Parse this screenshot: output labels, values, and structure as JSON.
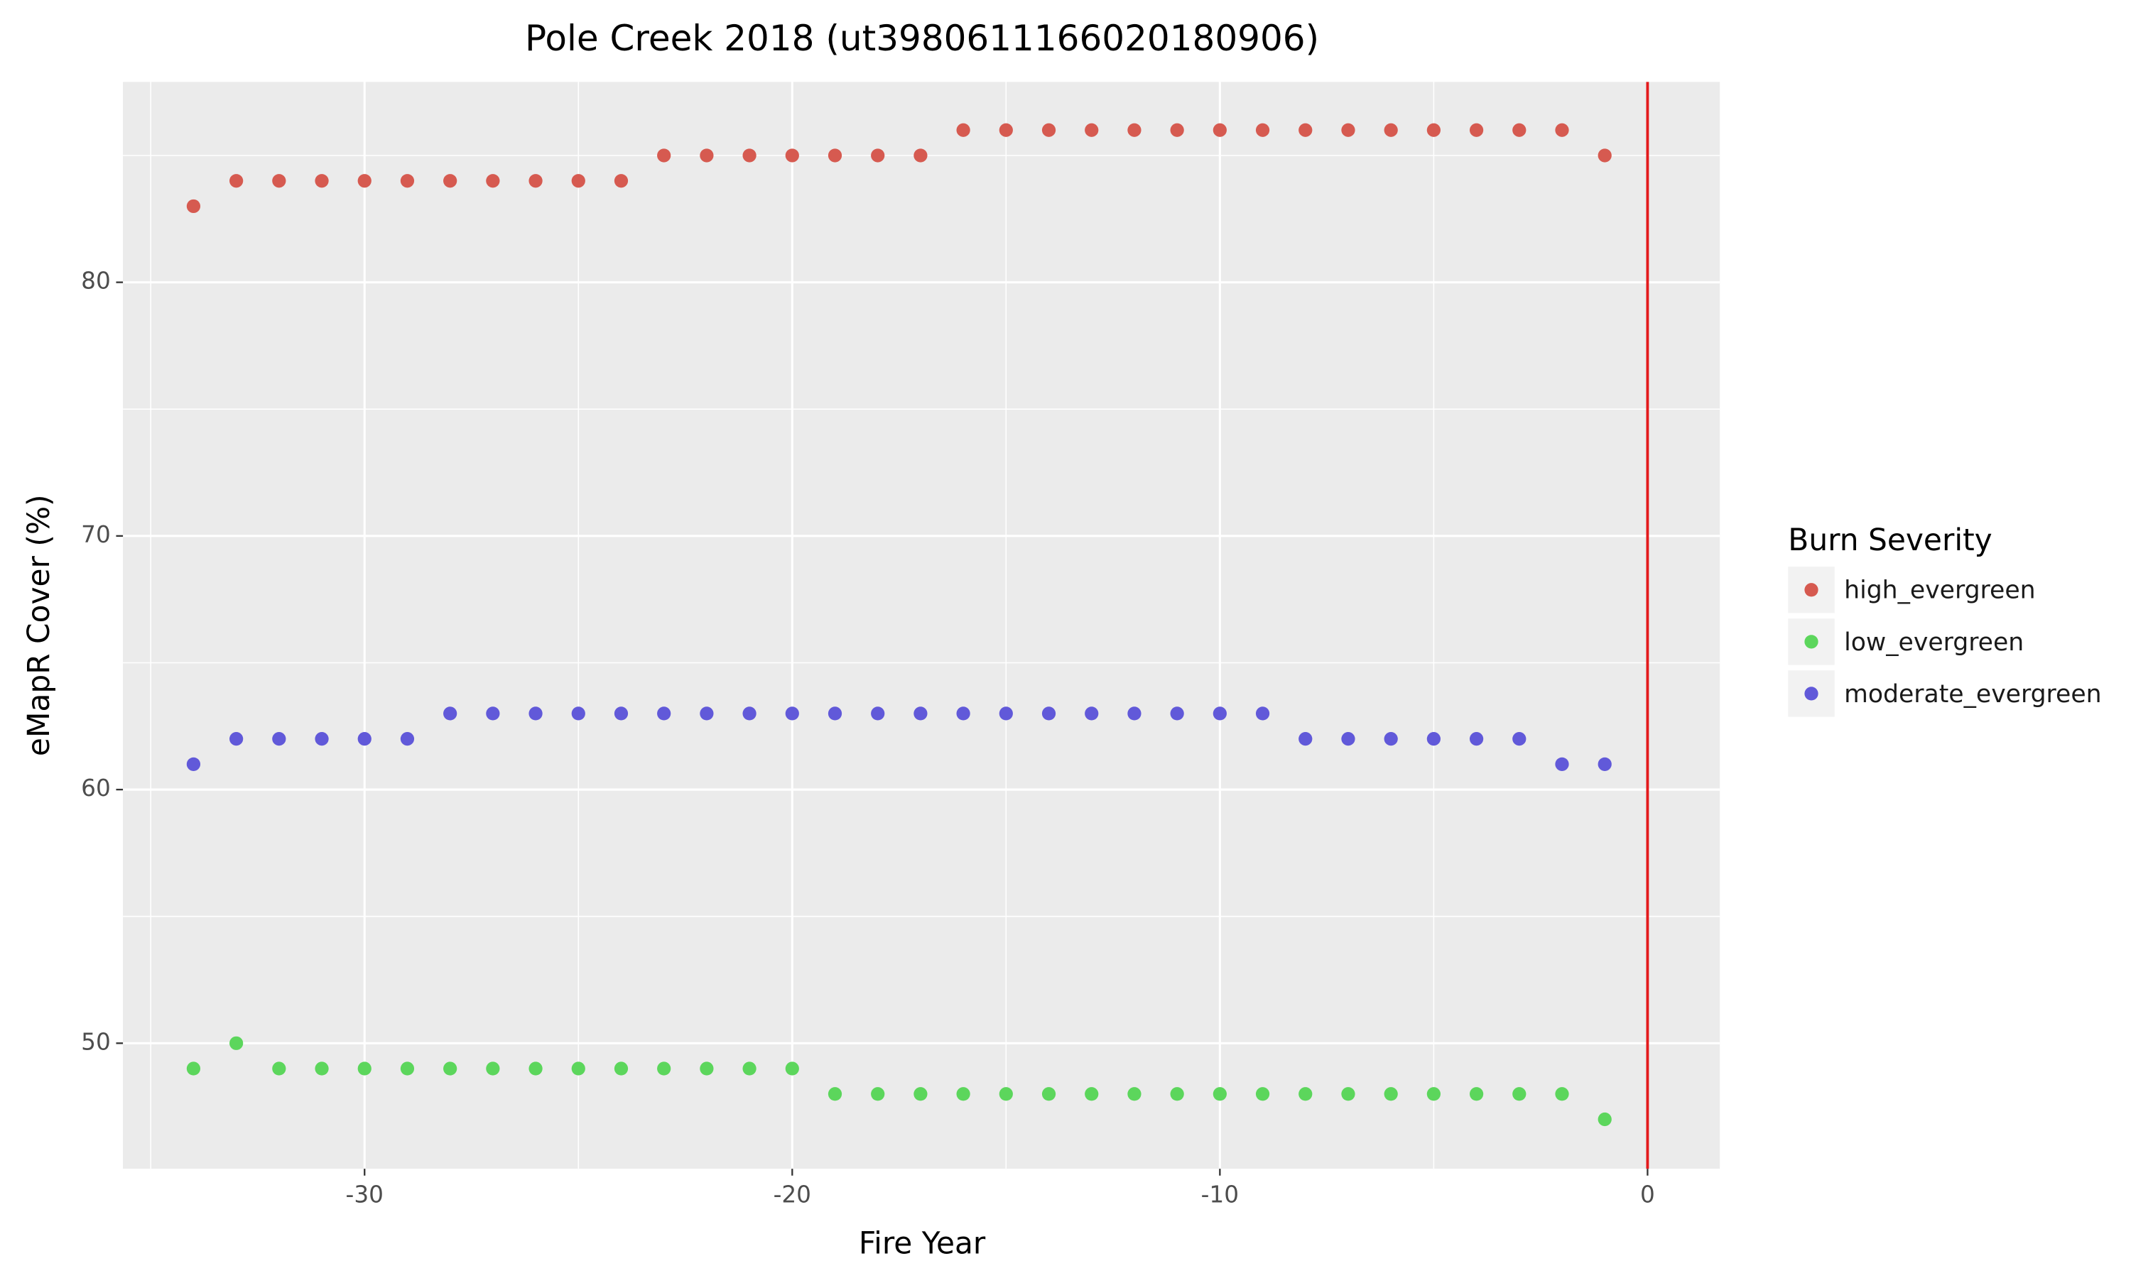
{
  "chart_data": {
    "type": "scatter",
    "title": "Pole Creek 2018 (ut39806111660201809​06)",
    "x_label": "Fire Year",
    "y_label": "eMapR Cover (%)",
    "legend_title": "Burn Severity",
    "x": [
      -34,
      -33,
      -32,
      -31,
      -30,
      -29,
      -28,
      -27,
      -26,
      -25,
      -24,
      -23,
      -22,
      -21,
      -20,
      -19,
      -18,
      -17,
      -16,
      -15,
      -14,
      -13,
      -12,
      -11,
      -10,
      -9,
      -8,
      -7,
      -6,
      -5,
      -4,
      -3,
      -2,
      -1
    ],
    "series": [
      {
        "name": "high_evergreen",
        "color": "#d65a50",
        "values": [
          83,
          84,
          84,
          84,
          84,
          84,
          84,
          84,
          84,
          84,
          84,
          85,
          85,
          85,
          85,
          85,
          85,
          85,
          86,
          86,
          86,
          86,
          86,
          86,
          86,
          86,
          86,
          86,
          86,
          86,
          86,
          86,
          86,
          85
        ]
      },
      {
        "name": "low_evergreen",
        "color": "#5cd65c",
        "values": [
          49,
          50,
          49,
          49,
          49,
          49,
          49,
          49,
          49,
          49,
          49,
          49,
          49,
          49,
          49,
          48,
          48,
          48,
          48,
          48,
          48,
          48,
          48,
          48,
          48,
          48,
          48,
          48,
          48,
          48,
          48,
          48,
          48,
          47
        ]
      },
      {
        "name": "moderate_evergreen",
        "color": "#6159d9",
        "values": [
          61,
          62,
          62,
          62,
          62,
          62,
          63,
          63,
          63,
          63,
          63,
          63,
          63,
          63,
          63,
          63,
          63,
          63,
          63,
          63,
          63,
          63,
          63,
          63,
          63,
          63,
          62,
          62,
          62,
          62,
          62,
          62,
          61,
          61
        ]
      }
    ],
    "xlim": [
      -35.65,
      1.69
    ],
    "xticks": [
      -30,
      -20,
      -10,
      0
    ],
    "xminor": [
      -35,
      -25,
      -15,
      -5
    ],
    "ylim": [
      45.05,
      87.9
    ],
    "yticks": [
      50,
      60,
      70,
      80
    ],
    "yminor": [
      55,
      65,
      75,
      85
    ],
    "grid": true,
    "legend": "right",
    "vline": {
      "x": 0,
      "color": "#e31a1c"
    }
  }
}
